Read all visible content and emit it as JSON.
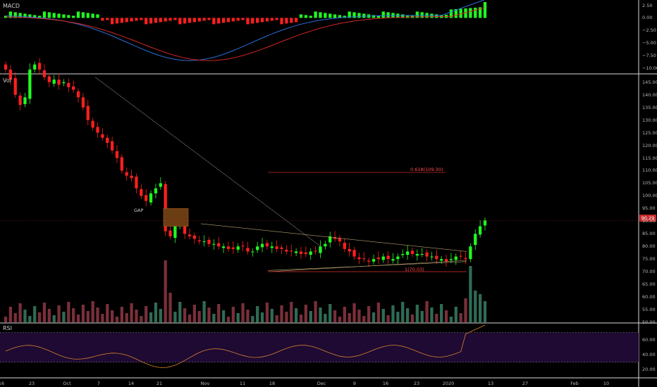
{
  "panes": {
    "macd_label": "MACD",
    "volume_label": "Vol",
    "rsi_label": "RSI"
  },
  "annotations": {
    "gap_label": "GAP",
    "fib_upper_label": "0.618(109.30)",
    "fib_lower_label": "1(70.03)"
  },
  "current_price": "90.29",
  "colors": {
    "background": "#000000",
    "up": "#1fff1f",
    "down": "#ff1f1f",
    "macd_line": "#2a6cd6",
    "signal_line": "#d32626",
    "rsi_line": "#d9822b",
    "rsi_band": "#1e0a33",
    "gap_box": "#6b3d12",
    "price_badge": "#c62828"
  },
  "chart_data": {
    "type": "candlestick",
    "price_axis": {
      "range": [
        50,
        148
      ],
      "ticks": [
        "145.00",
        "140.00",
        "135.00",
        "130.00",
        "125.00",
        "120.00",
        "115.00",
        "110.00",
        "105.00",
        "100.00",
        "95.00",
        "90.00",
        "85.00",
        "80.00",
        "75.00",
        "70.00",
        "65.00",
        "60.00",
        "55.00",
        "50.00"
      ]
    },
    "macd_axis": {
      "range": [
        -11,
        3
      ],
      "ticks": [
        "2.50",
        "0.00",
        "−2.50",
        "−5.00",
        "−7.50",
        "−10.00"
      ]
    },
    "rsi_axis": {
      "range": [
        10,
        80
      ],
      "ticks": [
        "60.00",
        "40.00",
        "20.00"
      ],
      "bands": [
        30,
        70
      ]
    },
    "x_axis_labels": [
      "16",
      "23",
      "Oct",
      "7",
      "14",
      "21",
      "Nov",
      "11",
      "18",
      "Dec",
      "9",
      "16",
      "23",
      "2020",
      "13",
      "27",
      "Feb",
      "10"
    ],
    "fib_levels": [
      {
        "label": "0.618(109.30)",
        "value": 109.3
      },
      {
        "label": "1(70.03)",
        "value": 70.03
      }
    ],
    "closes": [
      150,
      146,
      140,
      136,
      139,
      150,
      152,
      150,
      147,
      145,
      146,
      144,
      145,
      143,
      142,
      139,
      135,
      130,
      127,
      125,
      123,
      121,
      118,
      115,
      110,
      108,
      107,
      103,
      100,
      98,
      101,
      103,
      105,
      86,
      84,
      88,
      90,
      85,
      84,
      83,
      82,
      82,
      81,
      81,
      80,
      80,
      79,
      79,
      80,
      80,
      78,
      78,
      80,
      81,
      80,
      80,
      79,
      79,
      78,
      78,
      78,
      77,
      77,
      78,
      78,
      80,
      81,
      84,
      83,
      82,
      79,
      78,
      76,
      75,
      75,
      74,
      75,
      75,
      76,
      75,
      75,
      76,
      77,
      78,
      77,
      77,
      77,
      76,
      76,
      75,
      75,
      74,
      75,
      76,
      76,
      75,
      80,
      85,
      88,
      90.29
    ]
  }
}
